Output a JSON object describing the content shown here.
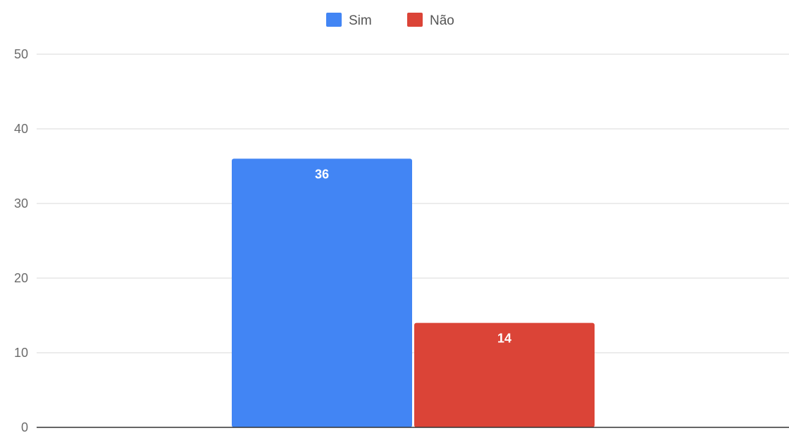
{
  "chart_data": {
    "type": "bar",
    "categories": [
      ""
    ],
    "series": [
      {
        "name": "Sim",
        "values": [
          36
        ],
        "color": "#4285F4"
      },
      {
        "name": "Não",
        "values": [
          14
        ],
        "color": "#DB4437"
      }
    ],
    "title": "",
    "xlabel": "",
    "ylabel": "",
    "ylim": [
      0,
      50
    ],
    "yticks": [
      0,
      10,
      20,
      30,
      40,
      50
    ],
    "grid": true,
    "legend_position": "top-center",
    "data_labels": true
  },
  "colors": {
    "gridline": "#d9d9d9",
    "baseline": "#333333",
    "tick_text": "#6b6b6b",
    "legend_text": "#555555",
    "data_label_text": "#ffffff"
  }
}
